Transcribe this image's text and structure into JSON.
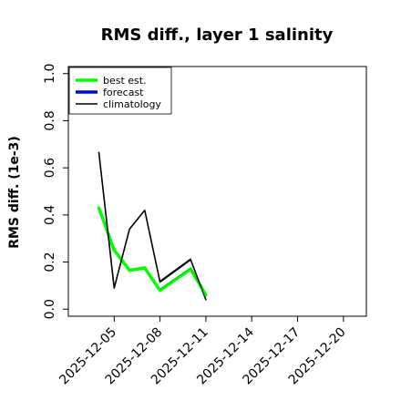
{
  "chart_data": {
    "type": "line",
    "title": "RMS diff., layer 1 salinity",
    "xlabel": "",
    "ylabel": "RMS diff. (1e-3)",
    "ylim": [
      -0.03,
      1.03
    ],
    "xlim": [
      "2025-12-02T00:00",
      "2025-12-21T12:00"
    ],
    "yticks": [
      0.0,
      0.2,
      0.4,
      0.6,
      0.8,
      1.0
    ],
    "ytick_labels": [
      "0.0",
      "0.2",
      "0.4",
      "0.6",
      "0.8",
      "1.0"
    ],
    "xticks": [
      "2025-12-05",
      "2025-12-08",
      "2025-12-11",
      "2025-12-14",
      "2025-12-17",
      "2025-12-20"
    ],
    "highlighted_xtick": "2025-12-11",
    "highlight_color": "#228B22",
    "grid": false,
    "legend_position": "top-left",
    "legend": [
      "best est.",
      "forecast",
      "climatology"
    ],
    "series": [
      {
        "name": "best est.",
        "color": "#00ff00",
        "style": "thick",
        "x": [
          "2025-12-04T00:00",
          "2025-12-05T00:00",
          "2025-12-06T00:00",
          "2025-12-07T00:00",
          "2025-12-08T00:00",
          "2025-12-09T00:00",
          "2025-12-10T00:00",
          "2025-12-11T00:00"
        ],
        "values": [
          0.43,
          0.25,
          0.165,
          0.175,
          0.08,
          0.125,
          0.17,
          0.06
        ]
      },
      {
        "name": "forecast",
        "color": "#0000ff",
        "style": "thick",
        "x": [],
        "values": []
      },
      {
        "name": "climatology",
        "color": "#000000",
        "style": "thin",
        "x": [
          "2025-12-04T00:00",
          "2025-12-05T00:00",
          "2025-12-06T00:00",
          "2025-12-07T00:00",
          "2025-12-08T00:00",
          "2025-12-10T00:00",
          "2025-12-11T00:00"
        ],
        "values": [
          0.665,
          0.09,
          0.34,
          0.42,
          0.115,
          0.21,
          0.04
        ]
      },
      {
        "name": "",
        "color": "#00cc00",
        "style": "hair",
        "x": [
          "2025-12-08T00:00",
          "2025-12-10T00:00",
          "2025-12-11T00:00"
        ],
        "values": [
          0.085,
          0.175,
          0.05
        ]
      },
      {
        "name": "",
        "color": "#000000",
        "style": "hair",
        "x": [
          "2025-12-08T00:00",
          "2025-12-10T00:00"
        ],
        "values": [
          0.12,
          0.215
        ]
      }
    ]
  }
}
